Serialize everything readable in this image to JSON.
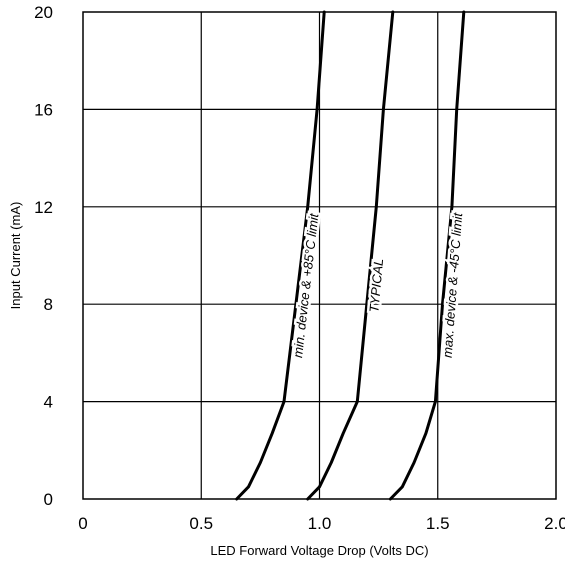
{
  "chart_data": {
    "type": "line",
    "xlabel": "LED Forward Voltage Drop (Volts DC)",
    "ylabel": "Input Current (mA)",
    "xlim": [
      0,
      2.0
    ],
    "ylim": [
      0,
      20
    ],
    "xticks": [
      "0",
      "0.5",
      "1.0",
      "1.5",
      "2.0"
    ],
    "yticks": [
      "0",
      "4",
      "8",
      "12",
      "16",
      "20"
    ],
    "grid": true,
    "series": [
      {
        "name": "min. device & +85°C limit",
        "points": [
          [
            0.65,
            0.0
          ],
          [
            0.7,
            0.5
          ],
          [
            0.75,
            1.5
          ],
          [
            0.8,
            2.7
          ],
          [
            0.85,
            4.0
          ],
          [
            0.9,
            8.0
          ],
          [
            0.95,
            12.0
          ],
          [
            0.99,
            16.0
          ],
          [
            1.02,
            20.0
          ]
        ]
      },
      {
        "name": "TYPICAL",
        "points": [
          [
            0.95,
            0.0
          ],
          [
            1.0,
            0.5
          ],
          [
            1.05,
            1.5
          ],
          [
            1.1,
            2.7
          ],
          [
            1.16,
            4.0
          ],
          [
            1.2,
            8.0
          ],
          [
            1.24,
            12.0
          ],
          [
            1.27,
            16.0
          ],
          [
            1.31,
            20.0
          ]
        ]
      },
      {
        "name": "max. device & -45°C limit",
        "points": [
          [
            1.3,
            0.0
          ],
          [
            1.35,
            0.5
          ],
          [
            1.4,
            1.5
          ],
          [
            1.45,
            2.7
          ],
          [
            1.49,
            4.0
          ],
          [
            1.52,
            8.0
          ],
          [
            1.56,
            12.0
          ],
          [
            1.58,
            16.0
          ],
          [
            1.61,
            20.0
          ]
        ]
      }
    ]
  }
}
